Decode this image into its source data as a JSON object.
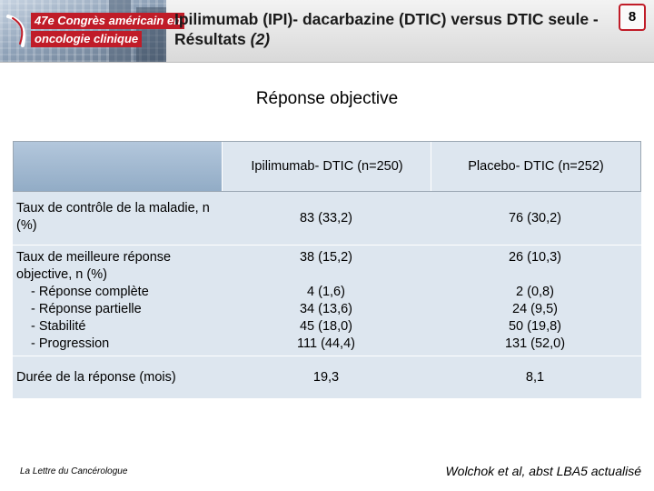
{
  "header": {
    "banner_line1": "47e Congrès américain en",
    "banner_line2": "oncologie clinique",
    "title": "Ipilimumab (IPI)- dacarbazine (DTIC) versus DTIC seule - Résultats ",
    "title_suffix": "(2)",
    "slide_number": "8"
  },
  "subtitle": "Réponse objective",
  "table": {
    "columns": [
      "Ipilimumab- DTIC (n=250)",
      "Placebo- DTIC (n=252)"
    ],
    "rows": [
      {
        "label": "Taux de contrôle de la maladie, n (%)",
        "ipi": "83 (33,2)",
        "placebo": "76 (30,2)"
      },
      {
        "label": "Taux de meilleure réponse objective, n (%)",
        "ipi": "38 (15,2)",
        "placebo": "26 (10,3)",
        "subitems": [
          {
            "label": "- Réponse complète",
            "ipi": "4 (1,6)",
            "placebo": "2 (0,8)"
          },
          {
            "label": "- Réponse partielle",
            "ipi": "34 (13,6)",
            "placebo": "24 (9,5)"
          },
          {
            "label": "- Stabilité",
            "ipi": "45 (18,0)",
            "placebo": "50 (19,8)"
          },
          {
            "label": "- Progression",
            "ipi": "111 (44,4)",
            "placebo": "131 (52,0)"
          }
        ]
      },
      {
        "label": "Durée de la réponse (mois)",
        "ipi": "19,3",
        "placebo": "8,1"
      }
    ]
  },
  "footer": {
    "left": "La Lettre du Cancérologue",
    "right": "Wolchok et al, abst LBA5 actualisé"
  },
  "colors": {
    "accent": "#c01c28",
    "table_row": "#dde6ef",
    "header_swatch": "#a3b9d1"
  }
}
